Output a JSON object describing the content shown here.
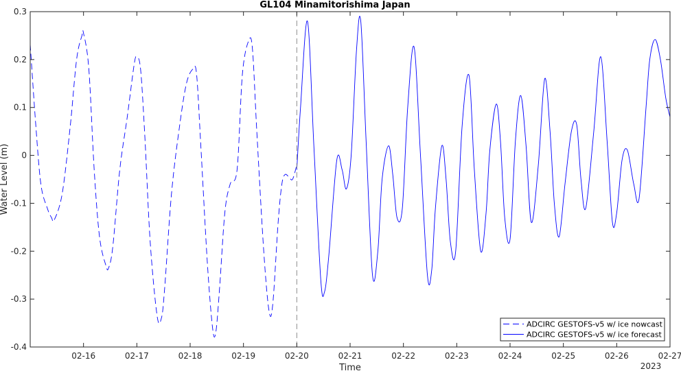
{
  "chart_data": {
    "type": "line",
    "title": "GL104 Minamitorishima Japan",
    "xlabel": "Time",
    "ylabel": "Water Level (m)",
    "x_year_label": "2023",
    "x_unit": "days (February 2023)",
    "xlim": [
      15.0,
      27.0
    ],
    "ylim": [
      -0.4,
      0.3
    ],
    "xticks": [
      16,
      17,
      18,
      19,
      20,
      21,
      22,
      23,
      24,
      25,
      26,
      27
    ],
    "xtick_labels": [
      "02-16",
      "02-17",
      "02-18",
      "02-19",
      "02-20",
      "02-21",
      "02-22",
      "02-23",
      "02-24",
      "02-25",
      "02-26",
      "02-27"
    ],
    "yticks": [
      -0.4,
      -0.3,
      -0.2,
      -0.1,
      0,
      0.1,
      0.2,
      0.3
    ],
    "ytick_labels": [
      "-0.4",
      "-0.3",
      "-0.2",
      "-0.1",
      "0",
      "0.1",
      "0.2",
      "0.3"
    ],
    "grid": false,
    "legend_position": "bottom-right",
    "nowcast_divider_x": 20.0,
    "series": [
      {
        "name": "ADCIRC GESTOFS-v5 w/ ice nowcast",
        "color": "#0000ff",
        "style": "dashed",
        "x": [
          15.0,
          15.1,
          15.2,
          15.32,
          15.4,
          15.45,
          15.6,
          15.75,
          15.87,
          15.97,
          16.0,
          16.1,
          16.2,
          16.3,
          16.42,
          16.47,
          16.55,
          16.68,
          16.82,
          16.95,
          17.0,
          17.07,
          17.15,
          17.25,
          17.38,
          17.46,
          17.52,
          17.65,
          17.8,
          17.93,
          18.05,
          18.12,
          18.2,
          18.32,
          18.42,
          18.48,
          18.55,
          18.65,
          18.75,
          18.88,
          18.98,
          19.1,
          19.17,
          19.25,
          19.38,
          19.48,
          19.55,
          19.65,
          19.72,
          19.78,
          19.85,
          19.92,
          20.0
        ],
        "y": [
          0.232,
          0.07,
          -0.06,
          -0.11,
          -0.13,
          -0.135,
          -0.08,
          0.06,
          0.2,
          0.25,
          0.255,
          0.18,
          -0.03,
          -0.17,
          -0.23,
          -0.235,
          -0.19,
          -0.03,
          0.08,
          0.19,
          0.205,
          0.18,
          0.04,
          -0.18,
          -0.335,
          -0.34,
          -0.28,
          -0.08,
          0.06,
          0.15,
          0.18,
          0.17,
          0.02,
          -0.22,
          -0.36,
          -0.37,
          -0.28,
          -0.12,
          -0.06,
          -0.03,
          0.17,
          0.24,
          0.22,
          0.05,
          -0.2,
          -0.325,
          -0.31,
          -0.14,
          -0.06,
          -0.04,
          -0.045,
          -0.05,
          -0.02
        ]
      },
      {
        "name": "ADCIRC GESTOFS-v5 w/ ice forecast",
        "color": "#0000ff",
        "style": "solid",
        "x": [
          20.0,
          20.07,
          20.2,
          20.32,
          20.45,
          20.52,
          20.6,
          20.75,
          20.85,
          20.93,
          21.02,
          21.12,
          21.2,
          21.3,
          21.42,
          21.52,
          21.6,
          21.72,
          21.8,
          21.88,
          21.98,
          22.08,
          22.2,
          22.32,
          22.45,
          22.53,
          22.6,
          22.72,
          22.8,
          22.88,
          22.98,
          23.1,
          23.23,
          23.33,
          23.45,
          23.55,
          23.62,
          23.74,
          23.82,
          23.9,
          24.0,
          24.1,
          24.2,
          24.3,
          24.4,
          24.53,
          24.65,
          24.75,
          24.83,
          24.92,
          25.03,
          25.15,
          25.25,
          25.33,
          25.42,
          25.57,
          25.7,
          25.82,
          25.92,
          26.0,
          26.1,
          26.2,
          26.32,
          26.42,
          26.55,
          26.62,
          26.72,
          26.82,
          26.92,
          27.0
        ],
        "y": [
          -0.03,
          0.1,
          0.28,
          0.02,
          -0.26,
          -0.285,
          -0.21,
          -0.01,
          -0.03,
          -0.07,
          0.0,
          0.22,
          0.28,
          0.03,
          -0.25,
          -0.2,
          -0.05,
          0.02,
          -0.04,
          -0.13,
          -0.11,
          0.1,
          0.226,
          0.0,
          -0.25,
          -0.24,
          -0.11,
          0.02,
          -0.05,
          -0.18,
          -0.2,
          0.06,
          0.167,
          -0.03,
          -0.2,
          -0.12,
          0.01,
          0.107,
          0.03,
          -0.13,
          -0.175,
          0.03,
          0.125,
          0.02,
          -0.14,
          -0.02,
          0.16,
          0.05,
          -0.1,
          -0.17,
          -0.06,
          0.05,
          0.064,
          -0.05,
          -0.11,
          0.05,
          0.206,
          0.03,
          -0.14,
          -0.12,
          -0.01,
          0.011,
          -0.06,
          -0.09,
          0.1,
          0.2,
          0.242,
          0.2,
          0.12,
          0.08
        ]
      }
    ]
  }
}
